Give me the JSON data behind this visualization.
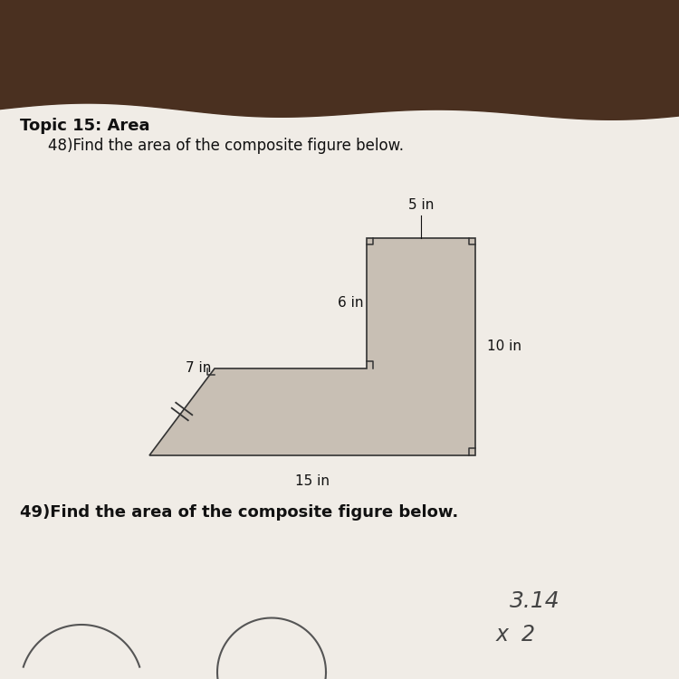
{
  "wood_color": "#4a3020",
  "paper_color": "#f0ece6",
  "paper_shadow": "#e0d8ce",
  "title_text": "Topic 15: Area",
  "problem48_text": "48)Find the area of the composite figure below.",
  "problem49_text": "49)Find the area of the composite figure below.",
  "hw_314": "3.14",
  "hw_x2": "x  2",
  "shape_fill": "#c8bfb4",
  "shape_edge": "#333333",
  "dim_5in": "5 in",
  "dim_6in": "6 in",
  "dim_7in": "7 in",
  "dim_10in": "10 in",
  "dim_15in": "15 in",
  "scale": 0.032,
  "ox": 0.22,
  "oy": 0.33
}
